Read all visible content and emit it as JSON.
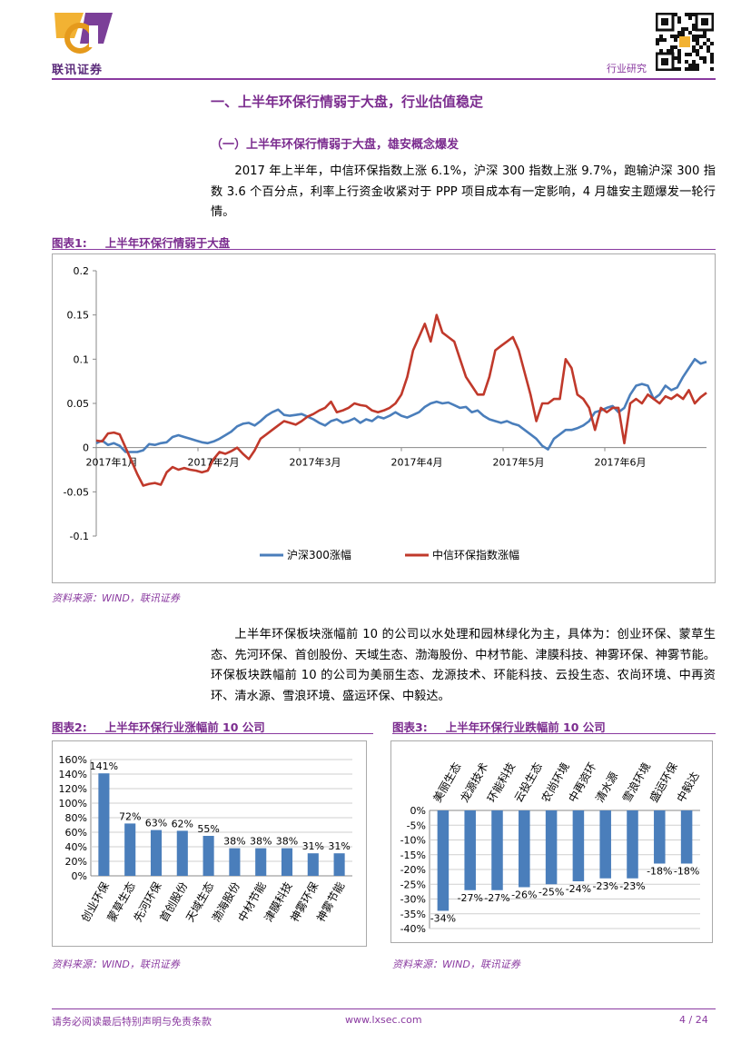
{
  "header": {
    "logo_text": "联讯证券",
    "category": "行业研究"
  },
  "section": {
    "h1": "一、上半年环保行情弱于大盘，行业估值稳定",
    "h2": "（一）上半年环保行情弱于大盘，雄安概念爆发",
    "para1": "2017 年上半年，中信环保指数上涨 6.1%，沪深 300 指数上涨 9.7%，跑输沪深 300 指数 3.6 个百分点，利率上行资金收紧对于 PPP 项目成本有一定影响，4 月雄安主题爆发一轮行情。",
    "para2": "上半年环保板块涨幅前 10 的公司以水处理和园林绿化为主，具体为：创业环保、蒙草生态、先河环保、首创股份、天域生态、渤海股份、中材节能、津膜科技、神雾环保、神雾节能。环保板块跌幅前 10 的公司为美丽生态、龙源技术、环能科技、云投生态、农尚环境、中再资环、清水源、雪浪环境、盛运环保、中毅达。"
  },
  "fig1": {
    "label": "图表1:",
    "title": "上半年环保行情弱于大盘",
    "source": "资料来源：WIND，联讯证券"
  },
  "fig2": {
    "label": "图表2:",
    "title": "上半年环保行业涨幅前 10 公司",
    "source": "资料来源：WIND，联讯证券"
  },
  "fig3": {
    "label": "图表3:",
    "title": "上半年环保行业跌幅前 10 公司",
    "source": "资料来源：WIND，联讯证券"
  },
  "footer": {
    "disclaimer": "请务必阅读最后特别声明与免责条款",
    "url": "www.lxsec.com",
    "page": "4 / 24"
  },
  "chart_data": [
    {
      "type": "line",
      "x_labels": [
        "2017年1月",
        "2017年2月",
        "2017年3月",
        "2017年4月",
        "2017年5月",
        "2017年6月"
      ],
      "ylim": [
        -0.1,
        0.2
      ],
      "y_ticks": [
        "0.2",
        "0.15",
        "0.1",
        "0.05",
        "0",
        "-0.05",
        "-0.1"
      ],
      "legend_position": "bottom",
      "series": [
        {
          "name": "沪深300涨幅",
          "color": "#4a7ebb",
          "values": [
            0.005,
            0.008,
            0.003,
            0.005,
            0.002,
            -0.005,
            -0.005,
            -0.005,
            -0.003,
            0.004,
            0.003,
            0.005,
            0.006,
            0.012,
            0.014,
            0.012,
            0.01,
            0.008,
            0.006,
            0.005,
            0.007,
            0.01,
            0.014,
            0.018,
            0.024,
            0.027,
            0.028,
            0.025,
            0.03,
            0.036,
            0.04,
            0.043,
            0.037,
            0.036,
            0.037,
            0.038,
            0.035,
            0.032,
            0.028,
            0.025,
            0.03,
            0.032,
            0.028,
            0.03,
            0.033,
            0.028,
            0.032,
            0.03,
            0.035,
            0.033,
            0.036,
            0.04,
            0.036,
            0.034,
            0.037,
            0.04,
            0.046,
            0.05,
            0.052,
            0.05,
            0.051,
            0.048,
            0.045,
            0.046,
            0.04,
            0.042,
            0.036,
            0.032,
            0.03,
            0.028,
            0.03,
            0.027,
            0.025,
            0.02,
            0.015,
            0.01,
            0.002,
            -0.002,
            0.01,
            0.015,
            0.02,
            0.02,
            0.022,
            0.025,
            0.03,
            0.04,
            0.042,
            0.045,
            0.047,
            0.04,
            0.045,
            0.06,
            0.07,
            0.072,
            0.07,
            0.055,
            0.06,
            0.07,
            0.065,
            0.068,
            0.08,
            0.09,
            0.1,
            0.095,
            0.097
          ]
        },
        {
          "name": "中信环保指数涨幅",
          "color": "#c0392b",
          "values": [
            0.008,
            0.007,
            0.016,
            0.017,
            0.015,
            0.0,
            -0.015,
            -0.03,
            -0.043,
            -0.041,
            -0.04,
            -0.042,
            -0.028,
            -0.022,
            -0.025,
            -0.023,
            -0.025,
            -0.026,
            -0.028,
            -0.026,
            -0.013,
            -0.005,
            -0.007,
            -0.004,
            0.0,
            -0.007,
            -0.013,
            -0.003,
            0.01,
            0.015,
            0.02,
            0.025,
            0.03,
            0.028,
            0.026,
            0.03,
            0.035,
            0.038,
            0.042,
            0.045,
            0.052,
            0.04,
            0.042,
            0.045,
            0.05,
            0.048,
            0.047,
            0.042,
            0.04,
            0.042,
            0.045,
            0.05,
            0.06,
            0.08,
            0.11,
            0.125,
            0.14,
            0.12,
            0.15,
            0.13,
            0.125,
            0.12,
            0.1,
            0.08,
            0.07,
            0.06,
            0.06,
            0.08,
            0.11,
            0.115,
            0.12,
            0.125,
            0.11,
            0.085,
            0.06,
            0.03,
            0.05,
            0.05,
            0.055,
            0.055,
            0.1,
            0.09,
            0.06,
            0.055,
            0.045,
            0.02,
            0.045,
            0.04,
            0.045,
            0.045,
            0.005,
            0.05,
            0.055,
            0.05,
            0.06,
            0.055,
            0.05,
            0.058,
            0.055,
            0.06,
            0.055,
            0.065,
            0.05,
            0.057,
            0.062
          ]
        }
      ]
    },
    {
      "type": "bar",
      "categories": [
        "创业环保",
        "蒙草生态",
        "先河环保",
        "首创股份",
        "天域生态",
        "渤海股份",
        "中材节能",
        "津膜科技",
        "神雾环保",
        "神雾节能"
      ],
      "values": [
        141,
        72,
        63,
        62,
        55,
        38,
        38,
        38,
        31,
        31
      ],
      "value_labels": [
        "141%",
        "72%",
        "63%",
        "62%",
        "55%",
        "38%",
        "38%",
        "38%",
        "31%",
        "31%"
      ],
      "y_ticks": [
        "160%",
        "140%",
        "120%",
        "100%",
        "80%",
        "60%",
        "40%",
        "20%",
        "0%"
      ],
      "ylim": [
        0,
        160
      ],
      "color": "#4a7ebb"
    },
    {
      "type": "bar",
      "categories": [
        "美丽生态",
        "龙源技术",
        "环能科技",
        "云投生态",
        "农尚环境",
        "中再资环",
        "清水源",
        "雪浪环境",
        "盛运环保",
        "中毅达"
      ],
      "values": [
        -34,
        -27,
        -27,
        -26,
        -25,
        -24,
        -23,
        -23,
        -18,
        -18
      ],
      "value_labels": [
        "-34%",
        "-27%",
        "-27%",
        "-26%",
        "-25%",
        "-24%",
        "-23%",
        "-23%",
        "-18%",
        "-18%"
      ],
      "y_ticks": [
        "0%",
        "-5%",
        "-10%",
        "-15%",
        "-20%",
        "-25%",
        "-30%",
        "-35%",
        "-40%"
      ],
      "ylim": [
        -40,
        0
      ],
      "color": "#4a7ebb"
    }
  ]
}
